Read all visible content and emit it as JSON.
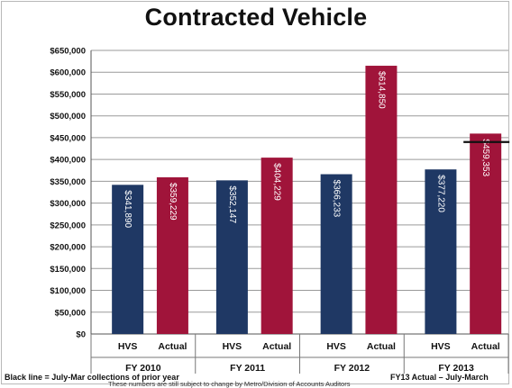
{
  "chart_data": {
    "type": "bar",
    "title": "Contracted Vehicle",
    "groups": [
      "FY 2010",
      "FY 2011",
      "FY 2012",
      "FY 2013"
    ],
    "bar_labels": [
      "HVS",
      "Actual"
    ],
    "series": [
      {
        "name": "HVS",
        "values": [
          341890,
          352147,
          366233,
          377220
        ],
        "color": "#1f3864"
      },
      {
        "name": "Actual",
        "values": [
          359229,
          404229,
          614850,
          459353
        ],
        "color": "#a0143a"
      }
    ],
    "value_labels": {
      "HVS": [
        "$341,890",
        "$352,147",
        "$366,233",
        "$377,220"
      ],
      "Actual": [
        "$359,229",
        "$404,229",
        "$614,850",
        "$459,353"
      ]
    },
    "reference_line": {
      "group": "FY 2013",
      "value": 440000,
      "color": "#111111"
    },
    "ylim": [
      0,
      650000
    ],
    "y_ticks": [
      0,
      50000,
      100000,
      150000,
      200000,
      250000,
      300000,
      350000,
      400000,
      450000,
      500000,
      550000,
      600000,
      650000
    ],
    "y_tick_labels": [
      "$0",
      "$50,000",
      "$100,000",
      "$150,000",
      "$200,000",
      "$250,000",
      "$300,000",
      "$350,000",
      "$400,000",
      "$450,000",
      "$500,000",
      "$550,000",
      "$600,000",
      "$650,000"
    ],
    "grid": true
  },
  "notes": {
    "left": "Black line = July-Mar collections of prior year",
    "right": "FY13 Actual – July-March",
    "bottom": "These numbers are still subject to change by Metro/Division of Accounts Auditors"
  }
}
